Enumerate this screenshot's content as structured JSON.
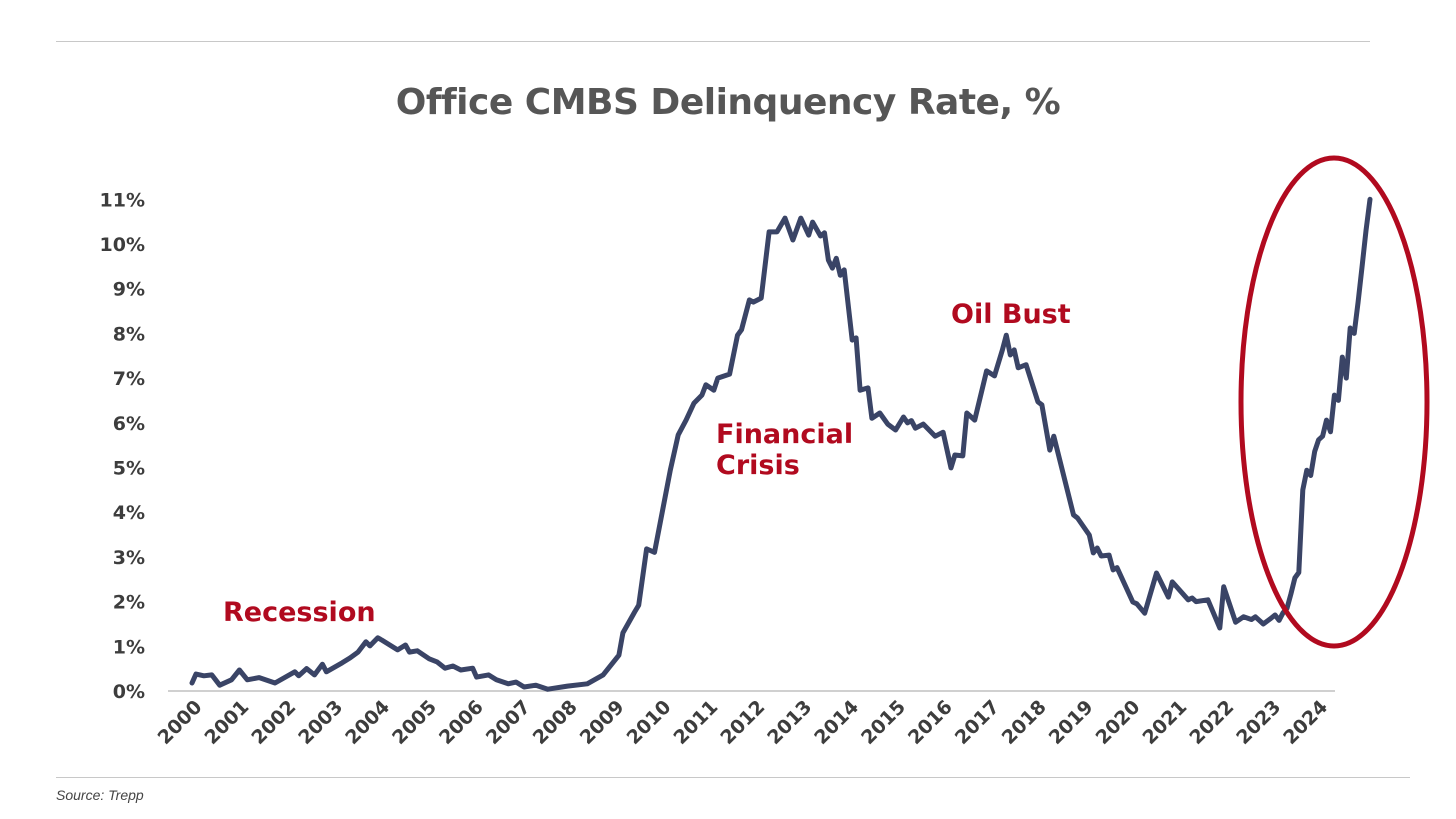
{
  "chart_data": {
    "type": "line",
    "title": "Office CMBS Delinquency Rate, %",
    "source": "Source: Trepp",
    "xlabel": "",
    "ylabel": "",
    "ylim": [
      0,
      11
    ],
    "xlim": [
      "2000-01",
      "2024-11"
    ],
    "grid": false,
    "y_ticks": [
      "0%",
      "1%",
      "2%",
      "3%",
      "4%",
      "5%",
      "6%",
      "7%",
      "8%",
      "9%",
      "10%",
      "11%"
    ],
    "x_ticks": [
      "2000",
      "2001",
      "2002",
      "2003",
      "2004",
      "2005",
      "2006",
      "2007",
      "2008",
      "2009",
      "2010",
      "2011",
      "2012",
      "2013",
      "2014",
      "2015",
      "2016",
      "2017",
      "2018",
      "2019",
      "2020",
      "2021",
      "2022",
      "2023",
      "2024"
    ],
    "annotations": [
      {
        "id": "recession",
        "lines": [
          "Recession"
        ]
      },
      {
        "id": "financial-crisis",
        "lines": [
          "Financial",
          "Crisis"
        ]
      },
      {
        "id": "oil-bust",
        "lines": [
          "Oil Bust"
        ]
      }
    ],
    "highlight": {
      "shape": "ellipse",
      "around": [
        "2023-01",
        "2024-11"
      ]
    },
    "colors": {
      "line": "#3a4466",
      "annotation": "#b10a1f",
      "highlight": "#b10a1f",
      "axis": "#d0d0d0",
      "text": "#3d3d3d"
    },
    "series": [
      {
        "points": [
          [
            "2000-01",
            0.18
          ],
          [
            "2000-02",
            0.38
          ],
          [
            "2000-04",
            0.34
          ],
          [
            "2000-06",
            0.36
          ],
          [
            "2000-08",
            0.13
          ],
          [
            "2000-11",
            0.25
          ],
          [
            "2001-01",
            0.47
          ],
          [
            "2001-03",
            0.25
          ],
          [
            "2001-06",
            0.3
          ],
          [
            "2001-10",
            0.18
          ],
          [
            "2002-03",
            0.43
          ],
          [
            "2002-04",
            0.34
          ],
          [
            "2002-06",
            0.5
          ],
          [
            "2002-08",
            0.36
          ],
          [
            "2002-10",
            0.6
          ],
          [
            "2002-11",
            0.43
          ],
          [
            "2003-03",
            0.63
          ],
          [
            "2003-05",
            0.74
          ],
          [
            "2003-07",
            0.87
          ],
          [
            "2003-09",
            1.1
          ],
          [
            "2003-10",
            1.01
          ],
          [
            "2003-12",
            1.19
          ],
          [
            "2004-01",
            1.14
          ],
          [
            "2004-05",
            0.92
          ],
          [
            "2004-07",
            1.03
          ],
          [
            "2004-08",
            0.87
          ],
          [
            "2004-10",
            0.9
          ],
          [
            "2005-01",
            0.72
          ],
          [
            "2005-03",
            0.65
          ],
          [
            "2005-05",
            0.51
          ],
          [
            "2005-07",
            0.56
          ],
          [
            "2005-09",
            0.47
          ],
          [
            "2005-12",
            0.51
          ],
          [
            "2006-01",
            0.31
          ],
          [
            "2006-04",
            0.36
          ],
          [
            "2006-06",
            0.25
          ],
          [
            "2006-09",
            0.16
          ],
          [
            "2006-11",
            0.2
          ],
          [
            "2007-01",
            0.09
          ],
          [
            "2007-04",
            0.13
          ],
          [
            "2007-07",
            0.04
          ],
          [
            "2007-12",
            0.11
          ],
          [
            "2008-05",
            0.16
          ],
          [
            "2008-09",
            0.36
          ],
          [
            "2009-01",
            0.8
          ],
          [
            "2009-02",
            1.3
          ],
          [
            "2009-05",
            1.77
          ],
          [
            "2009-06",
            1.92
          ],
          [
            "2009-08",
            3.18
          ],
          [
            "2009-10",
            3.1
          ],
          [
            "2010-02",
            4.94
          ],
          [
            "2010-04",
            5.73
          ],
          [
            "2010-06",
            6.06
          ],
          [
            "2010-08",
            6.44
          ],
          [
            "2010-10",
            6.62
          ],
          [
            "2010-11",
            6.85
          ],
          [
            "2011-01",
            6.73
          ],
          [
            "2011-02",
            7.0
          ],
          [
            "2011-05",
            7.09
          ],
          [
            "2011-07",
            7.96
          ],
          [
            "2011-08",
            8.08
          ],
          [
            "2011-10",
            8.75
          ],
          [
            "2011-11",
            8.7
          ],
          [
            "2012-01",
            8.79
          ],
          [
            "2012-03",
            10.27
          ],
          [
            "2012-05",
            10.27
          ],
          [
            "2012-07",
            10.58
          ],
          [
            "2012-09",
            10.09
          ],
          [
            "2012-11",
            10.58
          ],
          [
            "2013-01",
            10.2
          ],
          [
            "2013-02",
            10.49
          ],
          [
            "2013-04",
            10.18
          ],
          [
            "2013-05",
            10.25
          ],
          [
            "2013-06",
            9.64
          ],
          [
            "2013-07",
            9.46
          ],
          [
            "2013-08",
            9.68
          ],
          [
            "2013-09",
            9.3
          ],
          [
            "2013-10",
            9.42
          ],
          [
            "2013-12",
            7.85
          ],
          [
            "2014-01",
            7.9
          ],
          [
            "2014-02",
            6.73
          ],
          [
            "2014-04",
            6.78
          ],
          [
            "2014-05",
            6.1
          ],
          [
            "2014-07",
            6.22
          ],
          [
            "2014-09",
            5.97
          ],
          [
            "2014-11",
            5.84
          ],
          [
            "2015-01",
            6.13
          ],
          [
            "2015-02",
            6.0
          ],
          [
            "2015-03",
            6.05
          ],
          [
            "2015-04",
            5.88
          ],
          [
            "2015-06",
            5.97
          ],
          [
            "2015-09",
            5.7
          ],
          [
            "2015-11",
            5.79
          ],
          [
            "2016-01",
            4.99
          ],
          [
            "2016-02",
            5.28
          ],
          [
            "2016-04",
            5.26
          ],
          [
            "2016-05",
            6.22
          ],
          [
            "2016-07",
            6.06
          ],
          [
            "2016-10",
            7.16
          ],
          [
            "2016-12",
            7.05
          ],
          [
            "2017-02",
            7.63
          ],
          [
            "2017-03",
            7.96
          ],
          [
            "2017-04",
            7.52
          ],
          [
            "2017-05",
            7.63
          ],
          [
            "2017-06",
            7.23
          ],
          [
            "2017-08",
            7.3
          ],
          [
            "2017-11",
            6.47
          ],
          [
            "2017-12",
            6.4
          ],
          [
            "2018-02",
            5.39
          ],
          [
            "2018-03",
            5.7
          ],
          [
            "2018-08",
            3.94
          ],
          [
            "2018-09",
            3.87
          ],
          [
            "2018-12",
            3.49
          ],
          [
            "2019-01",
            3.09
          ],
          [
            "2019-02",
            3.2
          ],
          [
            "2019-03",
            3.02
          ],
          [
            "2019-05",
            3.04
          ],
          [
            "2019-06",
            2.71
          ],
          [
            "2019-07",
            2.76
          ],
          [
            "2019-11",
            1.99
          ],
          [
            "2019-12",
            1.95
          ],
          [
            "2020-02",
            1.74
          ],
          [
            "2020-05",
            2.64
          ],
          [
            "2020-08",
            2.1
          ],
          [
            "2020-09",
            2.44
          ],
          [
            "2021-01",
            2.04
          ],
          [
            "2021-02",
            2.08
          ],
          [
            "2021-03",
            2.0
          ],
          [
            "2021-06",
            2.04
          ],
          [
            "2021-09",
            1.41
          ],
          [
            "2021-10",
            2.33
          ],
          [
            "2022-01",
            1.54
          ],
          [
            "2022-03",
            1.66
          ],
          [
            "2022-05",
            1.6
          ],
          [
            "2022-06",
            1.66
          ],
          [
            "2022-08",
            1.5
          ],
          [
            "2022-10",
            1.63
          ],
          [
            "2022-11",
            1.7
          ],
          [
            "2022-12",
            1.58
          ],
          [
            "2023-01",
            1.75
          ],
          [
            "2023-02",
            1.85
          ],
          [
            "2023-03",
            2.17
          ],
          [
            "2023-04",
            2.53
          ],
          [
            "2023-05",
            2.65
          ],
          [
            "2023-06",
            4.5
          ],
          [
            "2023-07",
            4.94
          ],
          [
            "2023-08",
            4.82
          ],
          [
            "2023-09",
            5.36
          ],
          [
            "2023-10",
            5.62
          ],
          [
            "2023-11",
            5.7
          ],
          [
            "2023-12",
            6.06
          ],
          [
            "2024-01",
            5.8
          ],
          [
            "2024-02",
            6.62
          ],
          [
            "2024-03",
            6.5
          ],
          [
            "2024-04",
            7.47
          ],
          [
            "2024-05",
            7.0
          ],
          [
            "2024-06",
            8.12
          ],
          [
            "2024-07",
            8.0
          ],
          [
            "2024-08",
            8.7
          ],
          [
            "2024-09",
            9.5
          ],
          [
            "2024-10",
            10.3
          ],
          [
            "2024-11",
            11.0
          ]
        ]
      }
    ]
  }
}
